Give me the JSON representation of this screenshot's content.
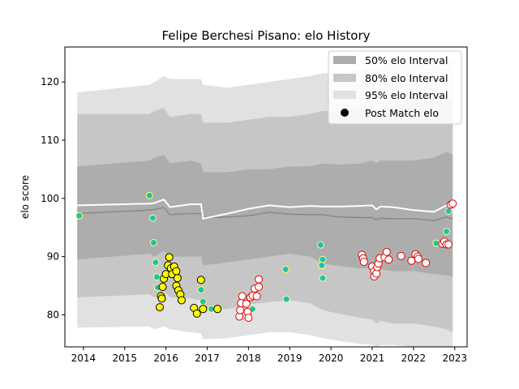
{
  "chart_data": {
    "type": "scatter",
    "title": "Felipe Berchesi Pisano: elo History",
    "xlabel": "",
    "ylabel": "elo score",
    "xlim": [
      2013.55,
      2023.3
    ],
    "ylim": [
      74.5,
      126
    ],
    "x_ticks": [
      "2014",
      "2015",
      "2016",
      "2017",
      "2018",
      "2019",
      "2020",
      "2021",
      "2022",
      "2023"
    ],
    "y_ticks": [
      "80",
      "90",
      "100",
      "110",
      "120"
    ],
    "grid": false,
    "legend_position": "top-right",
    "legend": [
      {
        "label": "50% elo Interval",
        "color": "#aaaaaa"
      },
      {
        "label": "80% elo Interval",
        "color": "#c4c4c4"
      },
      {
        "label": "95% elo Interval",
        "color": "#dddddd"
      },
      {
        "label": "Post Match elo",
        "color": "#000000"
      }
    ],
    "intervals": {
      "x": [
        2013.85,
        2015.6,
        2015.72,
        2015.95,
        2016.1,
        2016.6,
        2016.85,
        2016.9,
        2017.5,
        2018.0,
        2018.5,
        2019.0,
        2019.5,
        2019.8,
        2020.2,
        2020.7,
        2021.0,
        2021.1,
        2021.2,
        2021.5,
        2022.0,
        2022.5,
        2022.8,
        2022.95
      ],
      "mean": [
        98.8,
        99.1,
        99.2,
        99.8,
        98.5,
        99.0,
        99.0,
        96.5,
        97.4,
        98.2,
        98.8,
        98.5,
        98.7,
        98.6,
        98.6,
        98.7,
        98.8,
        98.1,
        98.6,
        98.5,
        98.0,
        97.7,
        98.8,
        98.0
      ],
      "median": [
        97.4,
        98.0,
        98.1,
        98.4,
        97.2,
        97.4,
        97.4,
        96.7,
        96.8,
        97.0,
        97.6,
        97.3,
        97.2,
        97.2,
        96.8,
        96.7,
        96.7,
        96.3,
        96.6,
        96.5,
        96.5,
        96.2,
        96.8,
        96.5
      ],
      "p50": {
        "low": [
          89.5,
          90.5,
          90.0,
          91.0,
          90.0,
          90.0,
          90.0,
          88.5,
          89.0,
          89.5,
          90.0,
          90.5,
          90.0,
          88.8,
          88.4,
          88.0,
          88.0,
          87.5,
          87.8,
          87.5,
          87.5,
          87.0,
          86.8,
          86.5
        ],
        "high": [
          105.5,
          106.5,
          107.0,
          107.5,
          106.0,
          106.5,
          106.0,
          104.5,
          104.5,
          105.0,
          105.0,
          105.5,
          105.5,
          106.0,
          105.8,
          106.0,
          106.5,
          106.0,
          106.5,
          106.5,
          106.5,
          107.0,
          108.0,
          107.5
        ]
      },
      "p80": {
        "low": [
          83.0,
          83.5,
          83.0,
          84.0,
          83.0,
          82.8,
          82.5,
          80.8,
          81.0,
          81.8,
          82.2,
          82.5,
          82.0,
          80.8,
          80.2,
          79.5,
          79.2,
          78.5,
          79.0,
          78.5,
          78.5,
          78.0,
          77.5,
          77.0
        ],
        "high": [
          114.5,
          114.5,
          115.0,
          115.5,
          114.0,
          114.5,
          114.5,
          113.0,
          113.0,
          113.5,
          114.0,
          114.0,
          114.5,
          115.0,
          115.0,
          115.5,
          116.0,
          115.5,
          116.0,
          116.0,
          116.5,
          116.5,
          117.5,
          117.0
        ]
      },
      "p95": {
        "low": [
          77.8,
          78.0,
          77.5,
          78.0,
          77.5,
          77.0,
          76.8,
          75.8,
          76.0,
          76.5,
          77.0,
          77.0,
          76.5,
          76.0,
          75.5,
          75.0,
          74.8,
          74.5,
          74.8,
          74.8,
          74.5,
          74.2,
          74.0,
          73.8
        ],
        "high": [
          118.2,
          119.5,
          120.0,
          121.0,
          120.5,
          120.5,
          120.5,
          119.5,
          119.0,
          119.5,
          120.0,
          120.5,
          121.0,
          121.5,
          121.5,
          122.0,
          122.5,
          122.0,
          122.5,
          123.0,
          123.0,
          123.5,
          124.0,
          123.5
        ]
      }
    },
    "series": [
      {
        "fill": "#1fbfbf",
        "edge": "#ffff66",
        "size": 4,
        "points": [
          [
            2013.9,
            97.0
          ],
          [
            2015.6,
            100.5
          ],
          [
            2015.68,
            96.6
          ],
          [
            2015.7,
            92.4
          ],
          [
            2015.75,
            89.0
          ],
          [
            2015.78,
            86.5
          ],
          [
            2015.8,
            84.7
          ],
          [
            2016.85,
            84.3
          ],
          [
            2016.9,
            82.3
          ],
          [
            2017.1,
            81.0
          ],
          [
            2018.1,
            81.0
          ],
          [
            2018.9,
            87.8
          ],
          [
            2018.92,
            82.7
          ],
          [
            2019.75,
            92.0
          ],
          [
            2019.78,
            88.5
          ],
          [
            2019.8,
            89.5
          ],
          [
            2019.8,
            86.3
          ],
          [
            2022.55,
            92.3
          ],
          [
            2022.8,
            94.3
          ],
          [
            2022.85,
            97.8
          ]
        ]
      },
      {
        "fill": "#ffff00",
        "edge": "#000000",
        "size": 4.5,
        "points": [
          [
            2015.95,
            86.2
          ],
          [
            2015.92,
            84.8
          ],
          [
            2015.88,
            83.2
          ],
          [
            2015.9,
            82.8
          ],
          [
            2015.85,
            81.3
          ],
          [
            2016.0,
            87.0
          ],
          [
            2016.05,
            88.5
          ],
          [
            2016.08,
            89.9
          ],
          [
            2016.12,
            88.0
          ],
          [
            2016.15,
            87.0
          ],
          [
            2016.2,
            88.3
          ],
          [
            2016.25,
            87.5
          ],
          [
            2016.28,
            86.3
          ],
          [
            2016.25,
            85.0
          ],
          [
            2016.3,
            84.2
          ],
          [
            2016.35,
            83.5
          ],
          [
            2016.38,
            82.5
          ],
          [
            2016.68,
            81.2
          ],
          [
            2016.75,
            80.2
          ],
          [
            2016.85,
            86.0
          ],
          [
            2016.9,
            81.0
          ],
          [
            2017.25,
            81.0
          ]
        ]
      },
      {
        "fill": "#ffffff",
        "edge": "#dd0000",
        "size": 4.5,
        "points": [
          [
            2017.78,
            79.7
          ],
          [
            2017.8,
            80.8
          ],
          [
            2017.82,
            82.0
          ],
          [
            2017.85,
            83.2
          ],
          [
            2017.95,
            81.9
          ],
          [
            2017.98,
            80.5
          ],
          [
            2018.0,
            79.5
          ],
          [
            2018.05,
            83.0
          ],
          [
            2018.1,
            83.3
          ],
          [
            2018.15,
            84.5
          ],
          [
            2018.2,
            83.2
          ],
          [
            2018.25,
            84.8
          ],
          [
            2018.25,
            86.1
          ],
          [
            2020.75,
            90.3
          ],
          [
            2020.78,
            89.7
          ],
          [
            2020.8,
            89.1
          ],
          [
            2021.0,
            88.3
          ],
          [
            2021.05,
            87.5
          ],
          [
            2021.05,
            86.6
          ],
          [
            2021.1,
            87.1
          ],
          [
            2021.12,
            88.2
          ],
          [
            2021.15,
            88.8
          ],
          [
            2021.18,
            89.7
          ],
          [
            2021.3,
            89.9
          ],
          [
            2021.35,
            90.8
          ],
          [
            2021.4,
            89.5
          ],
          [
            2021.7,
            90.1
          ],
          [
            2021.95,
            89.3
          ],
          [
            2022.05,
            90.4
          ],
          [
            2022.1,
            90.0
          ],
          [
            2022.12,
            89.6
          ],
          [
            2022.3,
            88.9
          ],
          [
            2022.7,
            92.2
          ],
          [
            2022.75,
            92.6
          ],
          [
            2022.8,
            92.1
          ],
          [
            2022.85,
            92.1
          ],
          [
            2022.9,
            98.9
          ],
          [
            2022.95,
            99.1
          ]
        ]
      }
    ]
  }
}
